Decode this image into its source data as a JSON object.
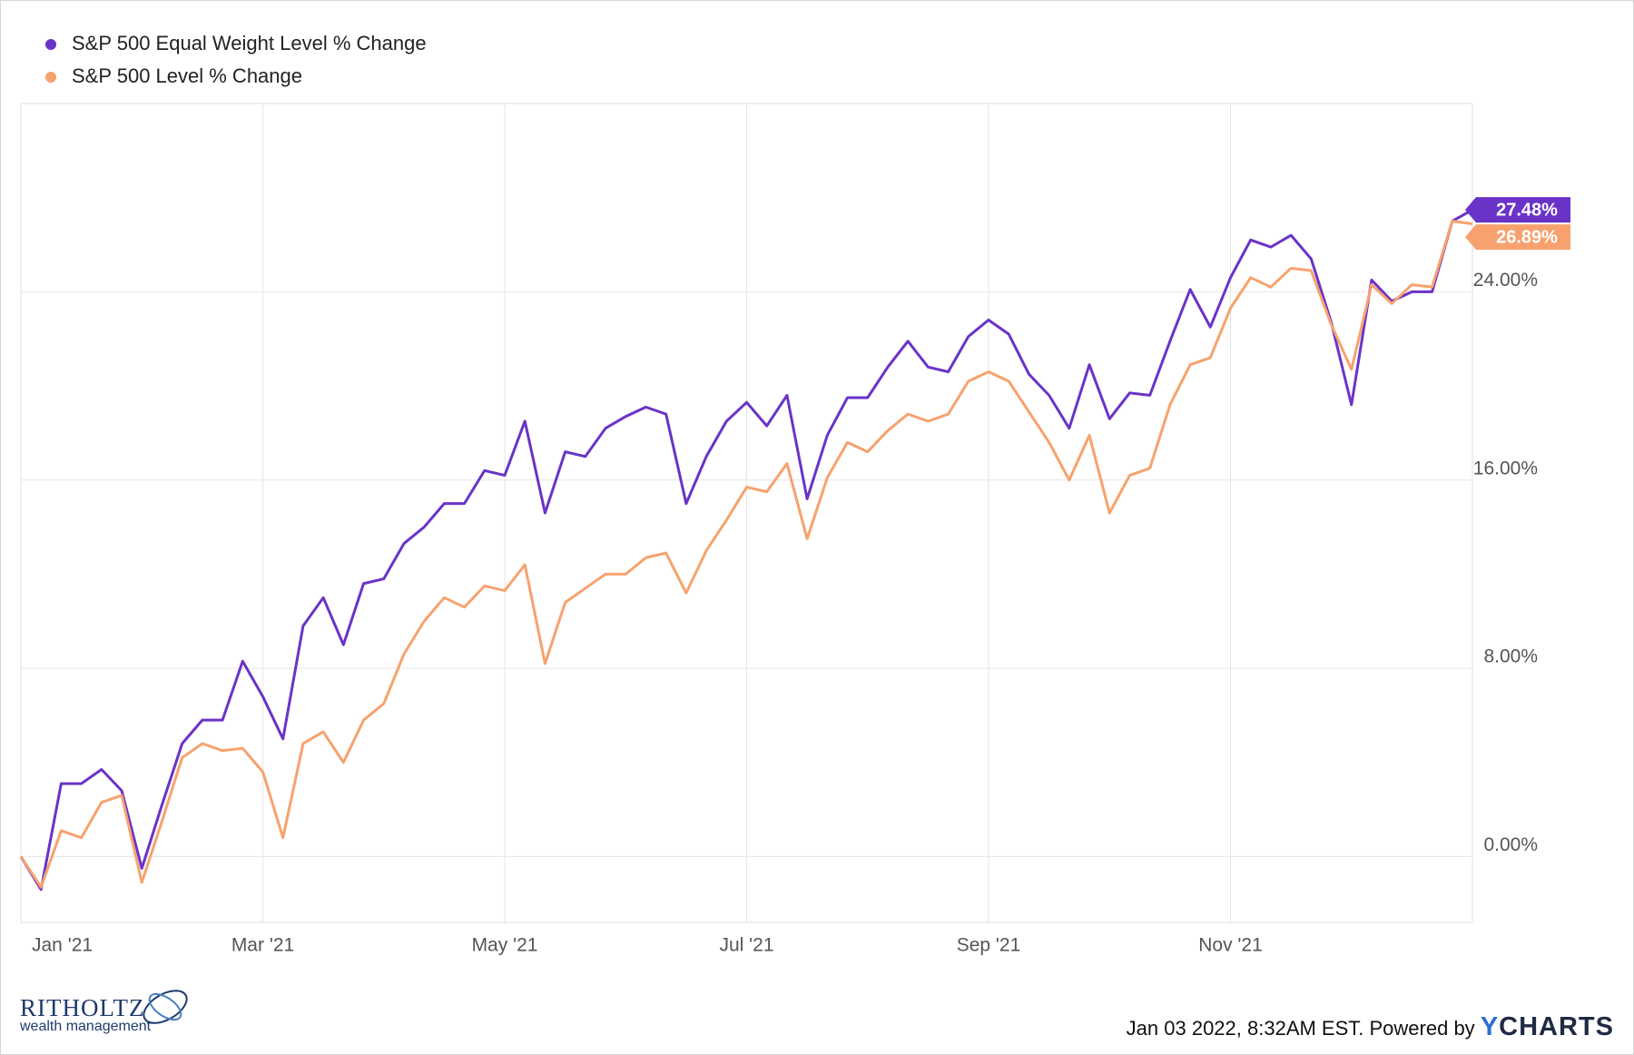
{
  "chart_data": {
    "type": "line",
    "categories": [
      "Jan '21",
      null,
      null,
      null,
      null,
      null,
      null,
      null,
      null,
      null,
      null,
      null,
      "Mar '21",
      null,
      null,
      null,
      null,
      null,
      null,
      null,
      null,
      null,
      null,
      null,
      "May '21",
      null,
      null,
      null,
      null,
      null,
      null,
      null,
      null,
      null,
      null,
      null,
      "Jul '21",
      null,
      null,
      null,
      null,
      null,
      null,
      null,
      null,
      null,
      null,
      null,
      "Sep '21",
      null,
      null,
      null,
      null,
      null,
      null,
      null,
      null,
      null,
      null,
      null,
      "Nov '21",
      null,
      null,
      null,
      null,
      null,
      null,
      null,
      null,
      null,
      null,
      null,
      null
    ],
    "series": [
      {
        "name": "S&P 500 Equal Weight Level % Change",
        "color": "#6a33c8",
        "values": [
          0,
          -1.4,
          3.1,
          3.1,
          3.7,
          2.8,
          -0.5,
          2.2,
          4.8,
          5.8,
          5.8,
          8.3,
          6.8,
          5.0,
          9.8,
          11.0,
          9.0,
          11.6,
          11.8,
          13.3,
          14.0,
          15.0,
          15.0,
          16.4,
          16.2,
          18.5,
          14.6,
          17.2,
          17.0,
          18.2,
          18.7,
          19.1,
          18.8,
          15.0,
          17.0,
          18.5,
          19.3,
          18.3,
          19.6,
          15.2,
          17.9,
          19.5,
          19.5,
          20.8,
          21.9,
          20.8,
          20.6,
          22.1,
          22.8,
          22.2,
          20.5,
          19.6,
          18.2,
          20.9,
          18.6,
          19.7,
          19.6,
          21.9,
          24.1,
          22.5,
          24.6,
          26.2,
          25.9,
          26.4,
          25.4,
          22.7,
          19.2,
          24.5,
          23.6,
          24.0,
          24.0,
          27.0,
          27.48
        ],
        "value_labels": [
          null,
          null,
          null,
          null,
          null,
          null,
          null,
          null,
          null,
          null,
          null,
          null,
          null,
          null,
          null,
          null,
          null,
          null,
          null,
          null,
          null,
          null,
          null,
          null,
          null,
          null,
          null,
          null,
          null,
          null,
          null,
          null,
          null,
          null,
          null,
          null,
          null,
          null,
          null,
          null,
          null,
          null,
          null,
          null,
          null,
          null,
          null,
          null,
          null,
          null,
          null,
          null,
          null,
          null,
          null,
          null,
          null,
          null,
          null,
          null,
          null,
          null,
          null,
          null,
          null,
          null,
          null,
          null,
          null,
          null,
          null,
          null,
          "27.48%"
        ]
      },
      {
        "name": "S&P 500 Level % Change",
        "color": "#f7a26e",
        "values": [
          0,
          -1.3,
          1.1,
          0.8,
          2.3,
          2.6,
          -1.1,
          1.5,
          4.2,
          4.8,
          4.5,
          4.6,
          3.6,
          0.8,
          4.8,
          5.3,
          4.0,
          5.8,
          6.5,
          8.6,
          10.0,
          11.0,
          10.6,
          11.5,
          11.3,
          12.4,
          8.2,
          10.8,
          11.4,
          12.0,
          12.0,
          12.7,
          12.9,
          11.2,
          13.0,
          14.3,
          15.7,
          15.5,
          16.7,
          13.5,
          16.1,
          17.6,
          17.2,
          18.1,
          18.8,
          18.5,
          18.8,
          20.2,
          20.6,
          20.2,
          18.9,
          17.6,
          16.0,
          17.9,
          14.6,
          16.2,
          16.5,
          19.2,
          20.9,
          21.2,
          23.3,
          24.6,
          24.2,
          25.0,
          24.9,
          22.6,
          20.7,
          24.3,
          23.5,
          24.3,
          24.2,
          27.0,
          26.89
        ],
        "value_labels": [
          null,
          null,
          null,
          null,
          null,
          null,
          null,
          null,
          null,
          null,
          null,
          null,
          null,
          null,
          null,
          null,
          null,
          null,
          null,
          null,
          null,
          null,
          null,
          null,
          null,
          null,
          null,
          null,
          null,
          null,
          null,
          null,
          null,
          null,
          null,
          null,
          null,
          null,
          null,
          null,
          null,
          null,
          null,
          null,
          null,
          null,
          null,
          null,
          null,
          null,
          null,
          null,
          null,
          null,
          null,
          null,
          null,
          null,
          null,
          null,
          null,
          null,
          null,
          null,
          null,
          null,
          null,
          null,
          null,
          null,
          null,
          null,
          "26.89%"
        ]
      }
    ],
    "ylim": [
      -2.8,
      32
    ],
    "yticks": [
      {
        "value": 0,
        "label": "0.00%"
      },
      {
        "value": 8,
        "label": "8.00%"
      },
      {
        "value": 16,
        "label": "16.00%"
      },
      {
        "value": 24,
        "label": "24.00%"
      }
    ],
    "grid": true,
    "legend": "top-left"
  },
  "footer": {
    "logo_name": "RITHOLTZ",
    "logo_sub": "wealth management",
    "stamp": "Jan 03 2022, 8:32AM EST. Powered by",
    "brand": "YCHARTS"
  }
}
